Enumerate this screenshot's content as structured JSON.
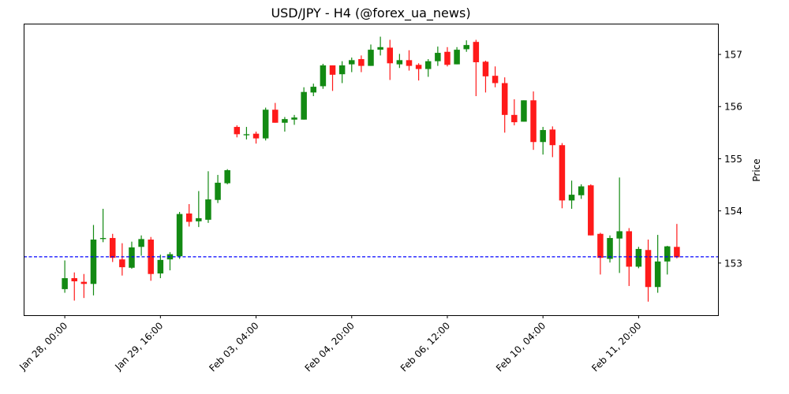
{
  "chart_data": {
    "type": "candlestick",
    "title": "USD/JPY - H4 (@forex_ua_news)",
    "xlabel": "",
    "ylabel": "Price",
    "ylim": [
      152.0,
      157.59
    ],
    "xlim": [
      -4.3,
      68.3
    ],
    "grid": false,
    "legend": null,
    "y_ticks": [
      153,
      154,
      155,
      156,
      157
    ],
    "x_ticks": [
      {
        "index": 0,
        "label": "Jan 28, 00:00"
      },
      {
        "index": 10,
        "label": "Jan 29, 16:00"
      },
      {
        "index": 20,
        "label": "Feb 03, 04:00"
      },
      {
        "index": 30,
        "label": "Feb 04, 20:00"
      },
      {
        "index": 40,
        "label": "Feb 06, 12:00"
      },
      {
        "index": 50,
        "label": "Feb 10, 04:00"
      },
      {
        "index": 60,
        "label": "Feb 11, 20:00"
      }
    ],
    "hline": {
      "value": 153.12,
      "color": "#0000ff",
      "style": "dashed"
    },
    "colors": {
      "up": "#138a13",
      "down": "#ff1a1a"
    },
    "timeframe": "H4",
    "symbol": "USD/JPY",
    "candles": [
      {
        "o": 152.5,
        "h": 153.05,
        "l": 152.43,
        "c": 152.71
      },
      {
        "o": 152.71,
        "h": 152.82,
        "l": 152.28,
        "c": 152.65
      },
      {
        "o": 152.64,
        "h": 152.79,
        "l": 152.33,
        "c": 152.6
      },
      {
        "o": 152.6,
        "h": 153.73,
        "l": 152.38,
        "c": 153.45
      },
      {
        "o": 153.46,
        "h": 154.04,
        "l": 153.4,
        "c": 153.48
      },
      {
        "o": 153.48,
        "h": 153.56,
        "l": 153.02,
        "c": 153.1
      },
      {
        "o": 153.07,
        "h": 153.38,
        "l": 152.76,
        "c": 152.92
      },
      {
        "o": 152.91,
        "h": 153.41,
        "l": 152.89,
        "c": 153.3
      },
      {
        "o": 153.31,
        "h": 153.53,
        "l": 153.14,
        "c": 153.46
      },
      {
        "o": 153.45,
        "h": 153.5,
        "l": 152.66,
        "c": 152.79
      },
      {
        "o": 152.8,
        "h": 153.16,
        "l": 152.71,
        "c": 153.06
      },
      {
        "o": 153.07,
        "h": 153.21,
        "l": 152.86,
        "c": 153.17
      },
      {
        "o": 153.13,
        "h": 153.98,
        "l": 153.08,
        "c": 153.94
      },
      {
        "o": 153.95,
        "h": 154.13,
        "l": 153.7,
        "c": 153.79
      },
      {
        "o": 153.8,
        "h": 154.38,
        "l": 153.69,
        "c": 153.86
      },
      {
        "o": 153.83,
        "h": 154.76,
        "l": 153.77,
        "c": 154.22
      },
      {
        "o": 154.21,
        "h": 154.69,
        "l": 154.15,
        "c": 154.54
      },
      {
        "o": 154.53,
        "h": 154.8,
        "l": 154.51,
        "c": 154.78
      },
      {
        "o": 155.61,
        "h": 155.64,
        "l": 155.41,
        "c": 155.47
      },
      {
        "o": 155.45,
        "h": 155.61,
        "l": 155.37,
        "c": 155.47
      },
      {
        "o": 155.48,
        "h": 155.52,
        "l": 155.29,
        "c": 155.39
      },
      {
        "o": 155.39,
        "h": 155.98,
        "l": 155.35,
        "c": 155.94
      },
      {
        "o": 155.94,
        "h": 156.07,
        "l": 155.69,
        "c": 155.69
      },
      {
        "o": 155.69,
        "h": 155.8,
        "l": 155.52,
        "c": 155.76
      },
      {
        "o": 155.75,
        "h": 155.84,
        "l": 155.65,
        "c": 155.79
      },
      {
        "o": 155.75,
        "h": 156.37,
        "l": 155.75,
        "c": 156.28
      },
      {
        "o": 156.27,
        "h": 156.44,
        "l": 156.2,
        "c": 156.38
      },
      {
        "o": 156.39,
        "h": 156.82,
        "l": 156.34,
        "c": 156.79
      },
      {
        "o": 156.79,
        "h": 156.79,
        "l": 156.3,
        "c": 156.61
      },
      {
        "o": 156.62,
        "h": 156.87,
        "l": 156.45,
        "c": 156.79
      },
      {
        "o": 156.81,
        "h": 156.94,
        "l": 156.66,
        "c": 156.89
      },
      {
        "o": 156.91,
        "h": 156.98,
        "l": 156.66,
        "c": 156.78
      },
      {
        "o": 156.78,
        "h": 157.19,
        "l": 156.78,
        "c": 157.09
      },
      {
        "o": 157.09,
        "h": 157.34,
        "l": 156.98,
        "c": 157.14
      },
      {
        "o": 157.13,
        "h": 157.28,
        "l": 156.51,
        "c": 156.83
      },
      {
        "o": 156.81,
        "h": 157.01,
        "l": 156.74,
        "c": 156.89
      },
      {
        "o": 156.89,
        "h": 157.08,
        "l": 156.69,
        "c": 156.78
      },
      {
        "o": 156.8,
        "h": 156.83,
        "l": 156.5,
        "c": 156.72
      },
      {
        "o": 156.72,
        "h": 156.91,
        "l": 156.57,
        "c": 156.87
      },
      {
        "o": 156.87,
        "h": 157.15,
        "l": 156.78,
        "c": 157.03
      },
      {
        "o": 157.05,
        "h": 157.14,
        "l": 156.77,
        "c": 156.8
      },
      {
        "o": 156.81,
        "h": 157.14,
        "l": 156.81,
        "c": 157.09
      },
      {
        "o": 157.1,
        "h": 157.27,
        "l": 157.05,
        "c": 157.18
      },
      {
        "o": 157.24,
        "h": 157.28,
        "l": 156.2,
        "c": 156.85
      },
      {
        "o": 156.86,
        "h": 156.88,
        "l": 156.27,
        "c": 156.58
      },
      {
        "o": 156.59,
        "h": 156.77,
        "l": 156.37,
        "c": 156.45
      },
      {
        "o": 156.45,
        "h": 156.56,
        "l": 155.5,
        "c": 155.84
      },
      {
        "o": 155.84,
        "h": 156.14,
        "l": 155.64,
        "c": 155.7
      },
      {
        "o": 155.71,
        "h": 156.12,
        "l": 155.71,
        "c": 156.12
      },
      {
        "o": 156.12,
        "h": 156.29,
        "l": 155.17,
        "c": 155.32
      },
      {
        "o": 155.32,
        "h": 155.61,
        "l": 155.08,
        "c": 155.55
      },
      {
        "o": 155.56,
        "h": 155.62,
        "l": 155.03,
        "c": 155.26
      },
      {
        "o": 155.26,
        "h": 155.3,
        "l": 154.05,
        "c": 154.2
      },
      {
        "o": 154.2,
        "h": 154.58,
        "l": 154.04,
        "c": 154.31
      },
      {
        "o": 154.3,
        "h": 154.51,
        "l": 154.23,
        "c": 154.47
      },
      {
        "o": 154.49,
        "h": 154.51,
        "l": 153.53,
        "c": 153.53
      },
      {
        "o": 153.56,
        "h": 153.58,
        "l": 152.78,
        "c": 153.1
      },
      {
        "o": 153.08,
        "h": 153.53,
        "l": 153.01,
        "c": 153.48
      },
      {
        "o": 153.47,
        "h": 154.64,
        "l": 152.81,
        "c": 153.61
      },
      {
        "o": 153.61,
        "h": 153.67,
        "l": 152.56,
        "c": 152.93
      },
      {
        "o": 152.93,
        "h": 153.31,
        "l": 152.9,
        "c": 153.27
      },
      {
        "o": 153.25,
        "h": 153.45,
        "l": 152.26,
        "c": 152.54
      },
      {
        "o": 152.54,
        "h": 153.54,
        "l": 152.43,
        "c": 153.03
      },
      {
        "o": 153.03,
        "h": 153.33,
        "l": 152.78,
        "c": 153.32
      },
      {
        "o": 153.31,
        "h": 153.75,
        "l": 153.09,
        "c": 153.11
      }
    ]
  }
}
